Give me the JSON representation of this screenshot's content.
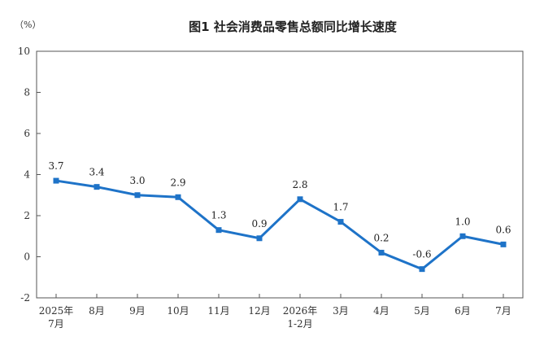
{
  "chart_data": {
    "type": "line",
    "title": "图1  社会消费品零售总额同比增长速度",
    "ylabel": "（%）",
    "xlabel": "",
    "ylim": [
      -2,
      10
    ],
    "yticks": [
      -2,
      0,
      2,
      4,
      6,
      8,
      10
    ],
    "grid": false,
    "legend": "none",
    "categories": [
      [
        "2025年",
        "7月"
      ],
      [
        "8月"
      ],
      [
        "9月"
      ],
      [
        "10月"
      ],
      [
        "11月"
      ],
      [
        "12月"
      ],
      [
        "2026年",
        "1-2月"
      ],
      [
        "3月"
      ],
      [
        "4月"
      ],
      [
        "5月"
      ],
      [
        "6月"
      ],
      [
        "7月"
      ]
    ],
    "series": [
      {
        "values": [
          3.7,
          3.4,
          3.0,
          2.9,
          1.3,
          0.9,
          2.8,
          1.7,
          0.2,
          -0.6,
          1.0,
          0.6
        ],
        "labels": [
          "3.7",
          "3.4",
          "3.0",
          "2.9",
          "1.3",
          "0.9",
          "2.8",
          "1.7",
          "0.2",
          "-0.6",
          "1.0",
          "0.6"
        ],
        "color": "#1e73c8"
      }
    ]
  }
}
